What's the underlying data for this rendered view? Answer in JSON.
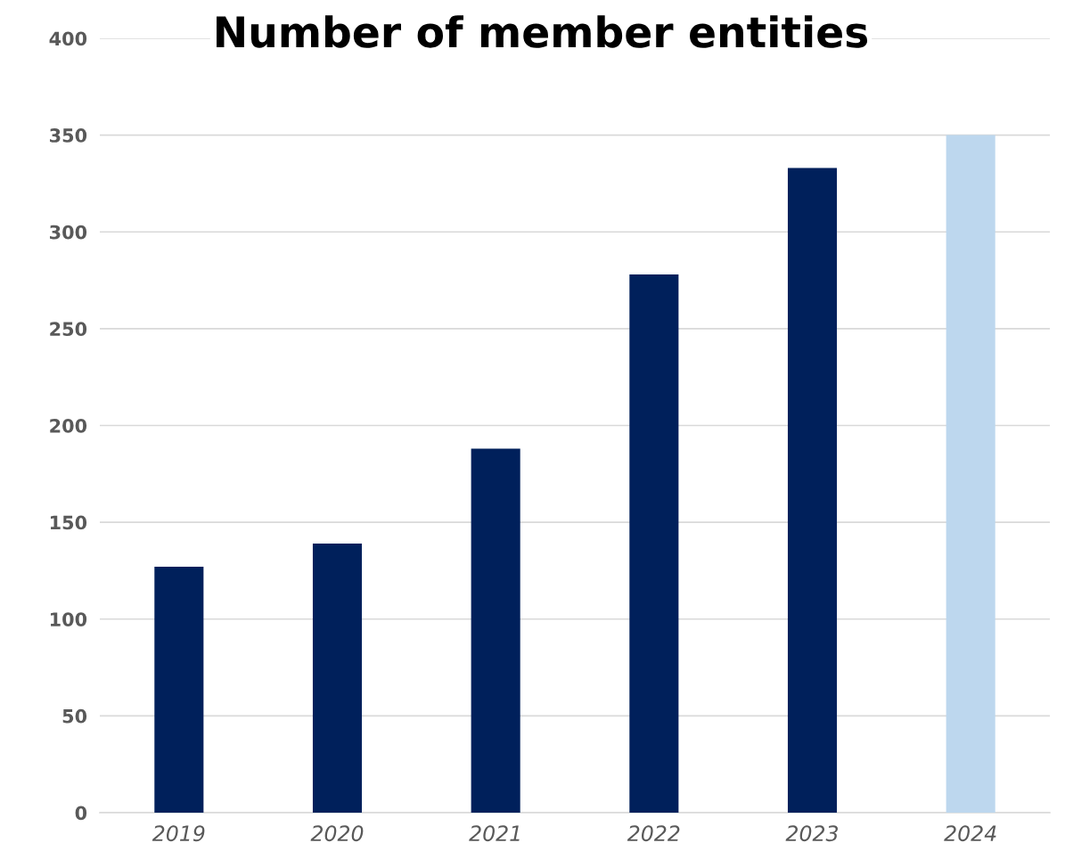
{
  "chart_data": {
    "type": "bar",
    "title": "Number of member entities",
    "categories": [
      "2019",
      "2020",
      "2021",
      "2022",
      "2023",
      "2024"
    ],
    "values": [
      127,
      139,
      188,
      278,
      333,
      350
    ],
    "colors": [
      "#00205b",
      "#00205b",
      "#00205b",
      "#00205b",
      "#00205b",
      "#bdd7ee"
    ],
    "ylim": [
      0,
      400
    ],
    "yticks": [
      0,
      50,
      100,
      150,
      200,
      250,
      300,
      350,
      400
    ],
    "grid": "y"
  }
}
